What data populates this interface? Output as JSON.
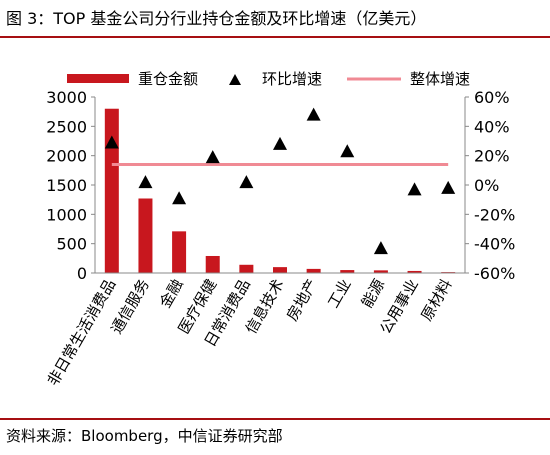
{
  "figure": {
    "title": "图 3：TOP 基金公司分行业持仓金额及环比增速（亿美元）",
    "source": "资料来源：Bloomberg，中信证券研究部"
  },
  "colors": {
    "bar": "#c8171e",
    "marker": "#000000",
    "overall_line": "#f08a94",
    "rule": "#a60f12"
  },
  "chart_data": {
    "type": "bar",
    "categories": [
      "非日常生活消费品",
      "通信服务",
      "金融",
      "医疗保健",
      "日常消费品",
      "信息技术",
      "房地产",
      "工业",
      "能源",
      "公用事业",
      "原材料"
    ],
    "series": [
      {
        "name": "重仓金额",
        "type": "bar",
        "axis": "left",
        "values": [
          2800,
          1270,
          710,
          290,
          140,
          100,
          70,
          50,
          45,
          35,
          15
        ]
      },
      {
        "name": "环比增速",
        "type": "scatter",
        "axis": "right",
        "marker": "triangle",
        "values": [
          0.29,
          0.02,
          -0.09,
          0.19,
          0.02,
          0.28,
          0.48,
          0.23,
          -0.43,
          -0.03,
          -0.02
        ]
      },
      {
        "name": "整体增速",
        "type": "line",
        "axis": "right",
        "value": 0.14
      }
    ],
    "y_left": {
      "min": 0,
      "max": 3000,
      "step": 500,
      "ticks": [
        "0",
        "500",
        "1000",
        "1500",
        "2000",
        "2500",
        "3000"
      ]
    },
    "y_right": {
      "min": -0.6,
      "max": 0.6,
      "step": 0.2,
      "ticks": [
        "-60%",
        "-40%",
        "-20%",
        "0%",
        "20%",
        "40%",
        "60%"
      ]
    },
    "legend_position": "top",
    "grid": false
  }
}
